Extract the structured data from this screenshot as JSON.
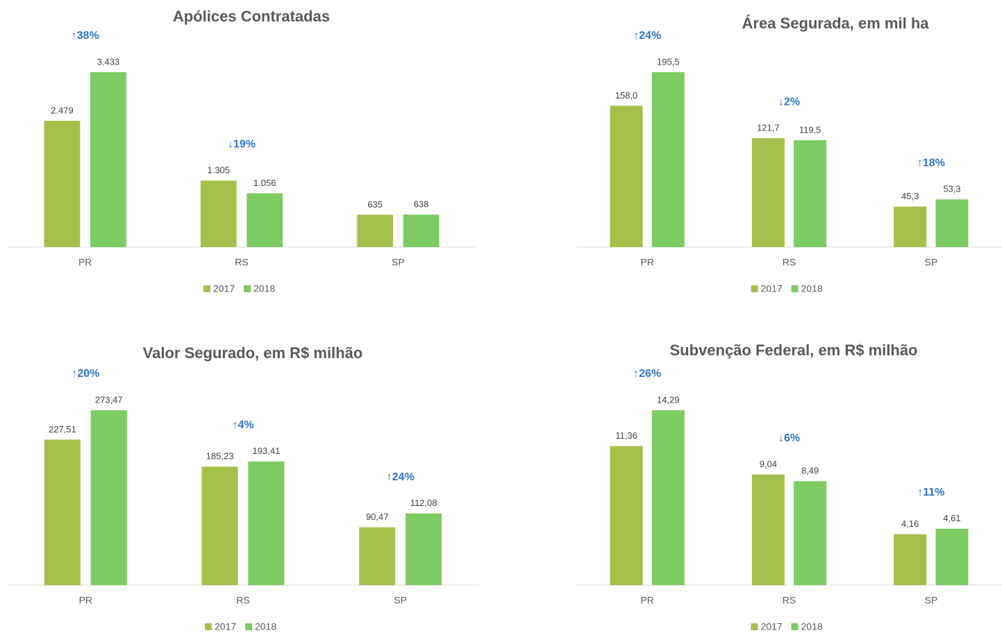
{
  "chart_data": [
    {
      "type": "bar",
      "title": "Apólices Contratadas",
      "categories": [
        "PR",
        "RS",
        "SP"
      ],
      "series": [
        {
          "name": "2017",
          "color": "#a5c04a",
          "values": [
            2479,
            1305,
            635
          ],
          "value_labels": [
            "2.479",
            "1.305",
            "635"
          ]
        },
        {
          "name": "2018",
          "color": "#7dcc63",
          "values": [
            3433,
            1056,
            638
          ],
          "value_labels": [
            "3.433",
            "1.056",
            "638"
          ]
        }
      ],
      "annotations": [
        "↑38%",
        "↓19%",
        null
      ]
    },
    {
      "type": "bar",
      "title": "Área Segurada, em mil ha",
      "categories": [
        "PR",
        "RS",
        "SP"
      ],
      "series": [
        {
          "name": "2017",
          "color": "#a5c04a",
          "values": [
            158.0,
            121.7,
            45.3
          ],
          "value_labels": [
            "158,0",
            "121,7",
            "45,3"
          ]
        },
        {
          "name": "2018",
          "color": "#7dcc63",
          "values": [
            195.5,
            119.5,
            53.3
          ],
          "value_labels": [
            "195,5",
            "119,5",
            "53,3"
          ]
        }
      ],
      "annotations": [
        "↑24%",
        "↓2%",
        "↑18%"
      ]
    },
    {
      "type": "bar",
      "title": "Valor Segurado, em R$ milhão",
      "categories": [
        "PR",
        "RS",
        "SP"
      ],
      "series": [
        {
          "name": "2017",
          "color": "#a5c04a",
          "values": [
            227.51,
            185.23,
            90.47
          ],
          "value_labels": [
            "227,51",
            "185,23",
            "90,47"
          ]
        },
        {
          "name": "2018",
          "color": "#7dcc63",
          "values": [
            273.47,
            193.41,
            112.08
          ],
          "value_labels": [
            "273,47",
            "193,41",
            "112,08"
          ]
        }
      ],
      "annotations": [
        "↑20%",
        "↑4%",
        "↑24%"
      ]
    },
    {
      "type": "bar",
      "title": "Subvenção Federal, em R$ milhão",
      "categories": [
        "PR",
        "RS",
        "SP"
      ],
      "series": [
        {
          "name": "2017",
          "color": "#a5c04a",
          "values": [
            11.36,
            9.04,
            4.16
          ],
          "value_labels": [
            "11,36",
            "9,04",
            "4,16"
          ]
        },
        {
          "name": "2018",
          "color": "#7dcc63",
          "values": [
            14.29,
            8.49,
            4.61
          ],
          "value_labels": [
            "14,29",
            "8,49",
            "4,61"
          ]
        }
      ],
      "annotations": [
        "↑26%",
        "↓6%",
        "↑11%"
      ]
    }
  ]
}
